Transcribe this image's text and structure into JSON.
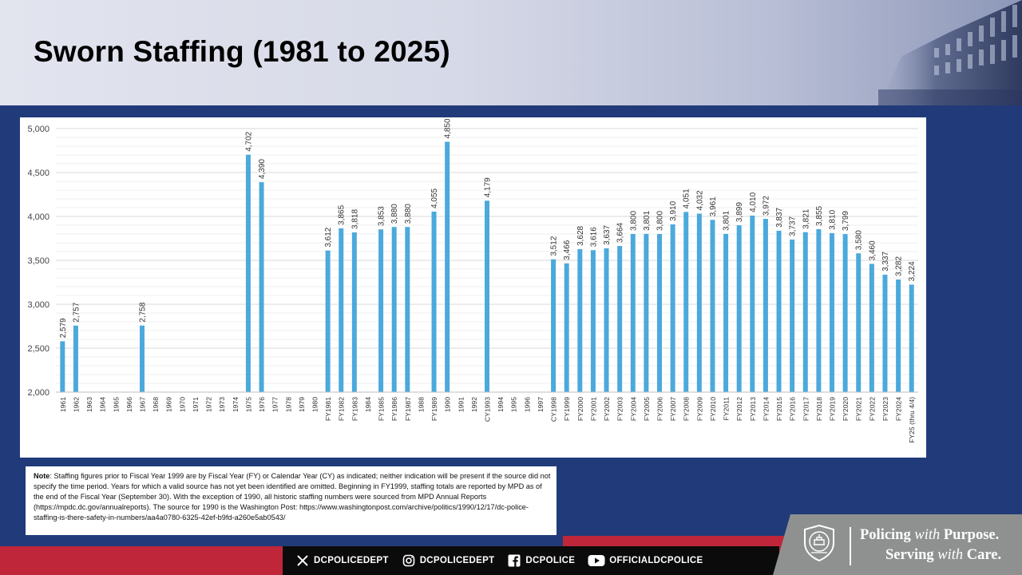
{
  "page": {
    "title": "Sworn Staffing (1981 to 2025)"
  },
  "chart_data": {
    "type": "bar",
    "title": "",
    "xlabel": "",
    "ylabel": "",
    "ylim": [
      2000,
      5000
    ],
    "y_ticks": [
      "2,000",
      "2,500",
      "3,000",
      "3,500",
      "4,000",
      "4,500",
      "5,000"
    ],
    "grid": "horizontal",
    "bar_color": "#4ba9dc",
    "categories": [
      "1961",
      "1962",
      "1963",
      "1964",
      "1965",
      "1966",
      "1967",
      "1968",
      "1969",
      "1970",
      "1971",
      "1972",
      "1973",
      "1974",
      "1975",
      "1976",
      "1977",
      "1978",
      "1979",
      "1980",
      "FY1981",
      "FY1982",
      "FY1983",
      "1984",
      "FY1985",
      "FY1986",
      "FY1987",
      "1988",
      "FY1989",
      "1990",
      "1991",
      "1992",
      "CY1993",
      "1994",
      "1995",
      "1996",
      "1997",
      "CY1998",
      "FY1999",
      "FY2000",
      "FY2001",
      "FY2002",
      "FY2003",
      "FY2004",
      "FY2005",
      "FY2006",
      "FY2007",
      "FY2008",
      "FY2009",
      "FY2010",
      "FY2011",
      "FY2012",
      "FY2013",
      "FY2014",
      "FY2015",
      "FY2016",
      "FY2017",
      "FY2018",
      "FY2019",
      "FY2020",
      "FY2021",
      "FY2022",
      "FY2023",
      "FY2024",
      "FY25 (thru 4/4)"
    ],
    "values": [
      2579,
      2757,
      null,
      null,
      null,
      null,
      2758,
      null,
      null,
      null,
      null,
      null,
      null,
      null,
      4702,
      4390,
      null,
      null,
      null,
      null,
      3612,
      3865,
      3818,
      null,
      3853,
      3880,
      3880,
      null,
      4055,
      4850,
      null,
      null,
      4179,
      null,
      null,
      null,
      null,
      3512,
      3466,
      3628,
      3616,
      3637,
      3664,
      3800,
      3801,
      3800,
      3910,
      4051,
      4032,
      3961,
      3801,
      3899,
      4010,
      3972,
      3837,
      3737,
      3821,
      3855,
      3810,
      3799,
      3580,
      3460,
      3337,
      3282,
      3224
    ],
    "labels": [
      "2,579",
      "2,757",
      "",
      "",
      "",
      "",
      "2,758",
      "",
      "",
      "",
      "",
      "",
      "",
      "",
      "4,702",
      "4,390",
      "",
      "",
      "",
      "",
      "3,612",
      "3,865",
      "3,818",
      "",
      "3,853",
      "3,880",
      "3,880",
      "",
      "4,055",
      "4,850",
      "",
      "",
      "4,179",
      "",
      "",
      "",
      "",
      "3,512",
      "3,466",
      "3,628",
      "3,616",
      "3,637",
      "3,664",
      "3,800",
      "3,801",
      "3,800",
      "3,910",
      "4,051",
      "4,032",
      "3,961",
      "3,801",
      "3,899",
      "4,010",
      "3,972",
      "3,837",
      "3,737",
      "3,821",
      "3,855",
      "3,810",
      "3,799",
      "3,580",
      "3,460",
      "3,337",
      "3,282",
      "3,224"
    ]
  },
  "note": {
    "label": "Note",
    "text": ": Staffing figures prior to Fiscal Year 1999 are by Fiscal Year (FY) or Calendar Year (CY) as indicated; neither indication will be present if the source did not specify the time period. Years for which a valid source has not yet been identified are omitted. Beginning in FY1999, staffing totals are reported by MPD as of the end of the Fiscal Year (September 30). With the exception of 1990, all historic staffing numbers were sourced from MPD Annual Reports (https://mpdc.dc.gov/annualreports). The source for 1990 is the Washington Post: https://www.washingtonpost.com/archive/politics/1990/12/17/dc-police-staffing-is-there-safety-in-numbers/aa4a0780-6325-42ef-b9fd-a260e5ab0543/"
  },
  "footer": {
    "social": [
      {
        "icon": "x-icon",
        "label": "DCPOLICEDEPT"
      },
      {
        "icon": "instagram-icon",
        "label": "DCPOLICEDEPT"
      },
      {
        "icon": "facebook-icon",
        "label": "DCPOLICE"
      },
      {
        "icon": "youtube-icon",
        "label": "OFFICIALDCPOLICE"
      }
    ],
    "slogan_line1_a": "Policing ",
    "slogan_line1_b": "with",
    "slogan_line1_c": " Purpose.",
    "slogan_line2_a": "Serving ",
    "slogan_line2_b": "with",
    "slogan_line2_c": " Care."
  },
  "colors": {
    "background": "#213a79",
    "accent_red": "#c0263a",
    "bar": "#4ba9dc"
  }
}
